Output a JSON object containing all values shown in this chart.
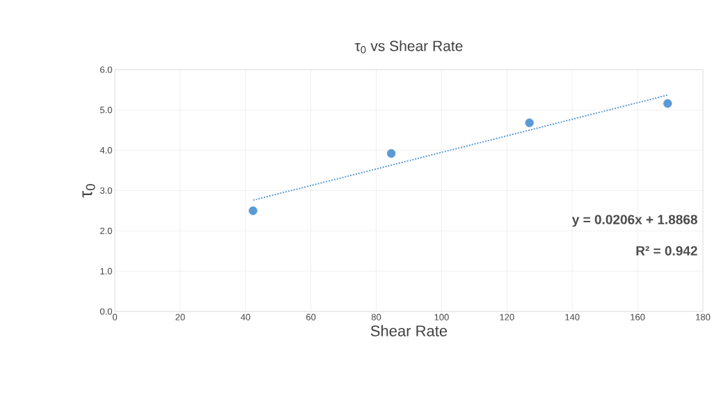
{
  "chart_data": {
    "type": "scatter",
    "title": "τ$_{0}$ vs Shear Rate",
    "xlabel": "Shear Rate",
    "ylabel": "τ$_{0}$",
    "xlim": [
      0,
      180
    ],
    "xticks": [
      0,
      20,
      40,
      60,
      80,
      100,
      120,
      140,
      160,
      180
    ],
    "ylim": [
      0,
      6
    ],
    "yticks": [
      {
        "value": 0,
        "label": "0.0"
      },
      {
        "value": 1,
        "label": "1.0"
      },
      {
        "value": 2,
        "label": "2.0"
      },
      {
        "value": 3,
        "label": "3.0"
      },
      {
        "value": 4,
        "label": "4.0"
      },
      {
        "value": 5,
        "label": "5.0"
      },
      {
        "value": 6,
        "label": "6.0"
      }
    ],
    "grid": true,
    "marker": "circle",
    "series": [
      {
        "color": "#5b9bd5",
        "x": [
          42.3,
          84.6,
          126.9,
          169.2
        ],
        "values": [
          2.5,
          3.92,
          4.68,
          5.16
        ]
      },
      {
        "type": "line",
        "color": "#5b9bd5",
        "line_style": "dotted",
        "marker": "none",
        "x": [
          42.3,
          169.2
        ],
        "values": [
          2.76,
          5.37
        ]
      }
    ],
    "annotations": [
      "y = 0.0206x + 1.8868",
      "R² = 0.942"
    ]
  }
}
